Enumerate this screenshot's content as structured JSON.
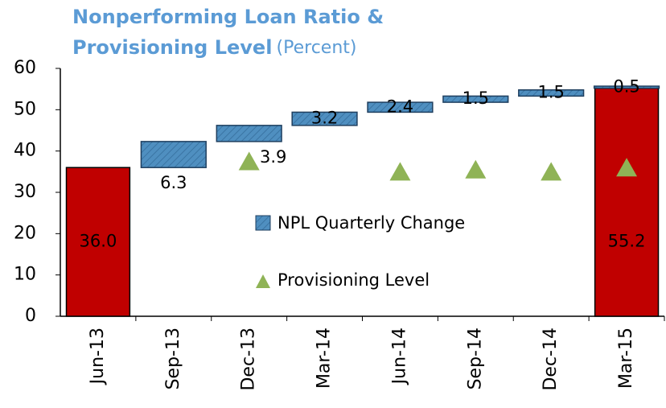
{
  "chart_data": {
    "type": "waterfall",
    "title": [
      "Nonperforming Loan Ratio &",
      "Provisioning Level"
    ],
    "subtitle": "(Percent)",
    "categories": [
      "Jun-13",
      "Sep-13",
      "Dec-13",
      "Mar-14",
      "Jun-14",
      "Sep-14",
      "Dec-14",
      "Mar-15"
    ],
    "totals": {
      "color": "#c00000",
      "values": [
        36.0,
        null,
        null,
        null,
        null,
        null,
        null,
        55.2
      ],
      "value_labels": [
        "36.0",
        null,
        null,
        null,
        null,
        null,
        null,
        "55.2"
      ]
    },
    "series": [
      {
        "name": "NPL Quarterly Change",
        "color": "#4f8fc0",
        "values": [
          null,
          6.3,
          3.9,
          3.2,
          2.4,
          1.5,
          1.5,
          0.5
        ]
      },
      {
        "name": "Provisioning Level",
        "color": "#8fb356",
        "values": [
          null,
          null,
          37.5,
          null,
          35,
          35.5,
          35,
          36
        ]
      }
    ],
    "ylim": [
      0,
      60
    ],
    "yticks": [
      0,
      10,
      20,
      30,
      40,
      50,
      60
    ]
  }
}
